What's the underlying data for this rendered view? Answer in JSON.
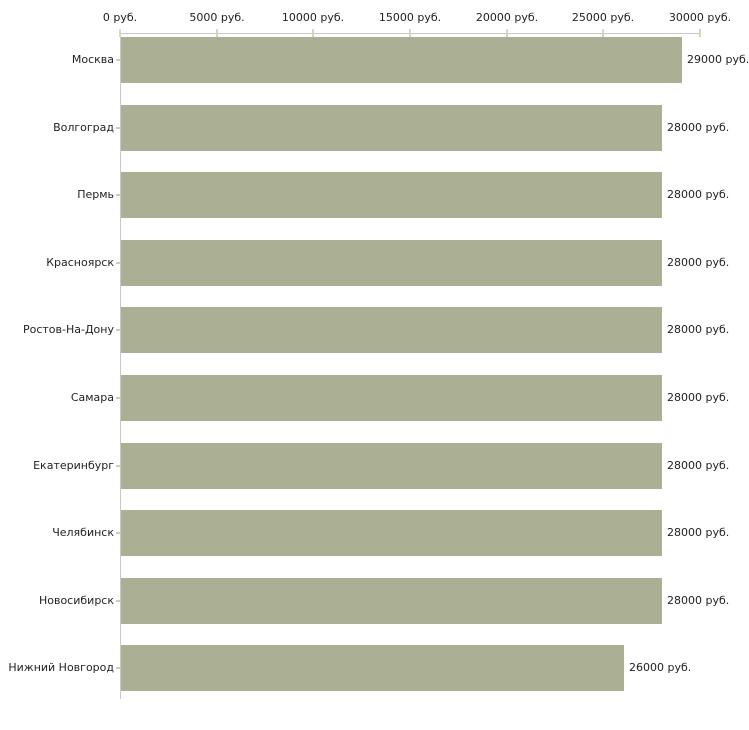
{
  "chart_data": {
    "type": "bar",
    "orientation": "horizontal",
    "title": "",
    "xlabel": "",
    "ylabel": "",
    "categories": [
      "Москва",
      "Волгоград",
      "Пермь",
      "Красноярск",
      "Ростов-На-Дону",
      "Самара",
      "Екатеринбург",
      "Челябинск",
      "Новосибирск",
      "Нижний Новгород"
    ],
    "values": [
      29000,
      28000,
      28000,
      28000,
      28000,
      28000,
      28000,
      28000,
      28000,
      26000
    ],
    "value_labels": [
      "29000 руб.",
      "28000 руб.",
      "28000 руб.",
      "28000 руб.",
      "28000 руб.",
      "28000 руб.",
      "28000 руб.",
      "28000 руб.",
      "28000 руб.",
      "26000 руб."
    ],
    "x_axis": {
      "position": "top",
      "tick_values": [
        0,
        5000,
        10000,
        15000,
        20000,
        25000,
        30000
      ],
      "tick_labels": [
        "0 руб.",
        "5000 руб.",
        "10000 руб.",
        "15000 руб.",
        "20000 руб.",
        "25000 руб.",
        "30000 руб."
      ],
      "range": [
        0,
        30000
      ]
    },
    "grid": false,
    "legend": false,
    "colors": {
      "bar": "#abb095",
      "axis_line": "#c8c8c8",
      "tick_mark": "#d8d5b8",
      "text": "#222222",
      "background": "#ffffff"
    }
  }
}
